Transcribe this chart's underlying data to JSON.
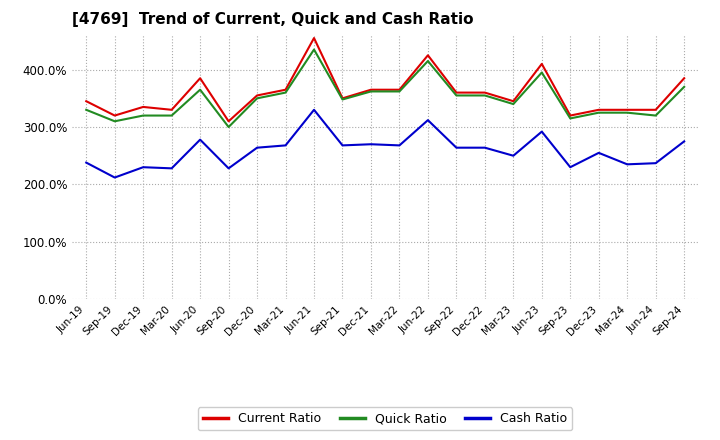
{
  "title": "[4769]  Trend of Current, Quick and Cash Ratio",
  "labels": [
    "Jun-19",
    "Sep-19",
    "Dec-19",
    "Mar-20",
    "Jun-20",
    "Sep-20",
    "Dec-20",
    "Mar-21",
    "Jun-21",
    "Sep-21",
    "Dec-21",
    "Mar-22",
    "Jun-22",
    "Sep-22",
    "Dec-22",
    "Mar-23",
    "Jun-23",
    "Sep-23",
    "Dec-23",
    "Mar-24",
    "Jun-24",
    "Sep-24"
  ],
  "current_ratio": [
    345,
    320,
    335,
    330,
    385,
    310,
    355,
    365,
    455,
    350,
    365,
    365,
    425,
    360,
    360,
    345,
    410,
    320,
    330,
    330,
    330,
    385
  ],
  "quick_ratio": [
    330,
    310,
    320,
    320,
    365,
    300,
    350,
    360,
    435,
    348,
    362,
    362,
    415,
    355,
    355,
    340,
    395,
    315,
    325,
    325,
    320,
    370
  ],
  "cash_ratio": [
    238,
    212,
    230,
    228,
    278,
    228,
    264,
    268,
    330,
    268,
    270,
    268,
    312,
    264,
    264,
    250,
    292,
    230,
    255,
    235,
    237,
    275
  ],
  "ylim": [
    0,
    460
  ],
  "yticks": [
    0,
    100,
    200,
    300,
    400
  ],
  "current_color": "#dd0000",
  "quick_color": "#228B22",
  "cash_color": "#0000cc",
  "bg_color": "#ffffff",
  "plot_bg_color": "#ffffff",
  "grid_color": "#aaaaaa",
  "line_width": 1.5,
  "legend_labels": [
    "Current Ratio",
    "Quick Ratio",
    "Cash Ratio"
  ]
}
